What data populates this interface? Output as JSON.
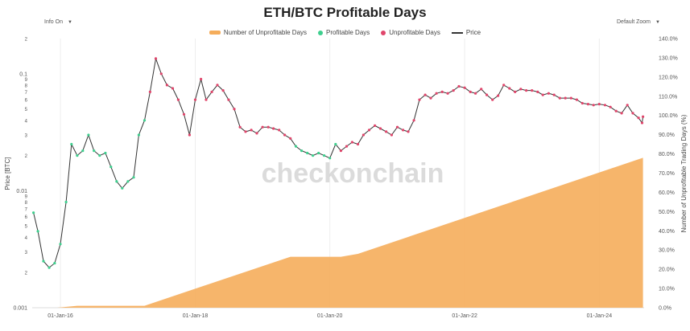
{
  "title": "ETH/BTC Profitable Days",
  "controls": {
    "info_label": "Info On",
    "zoom_label": "Default Zoom",
    "arrow": "▼"
  },
  "legend": [
    {
      "label": "Number of Unprofitable Days",
      "marker": "bar",
      "color": "#f5ad5b"
    },
    {
      "label": "Profitable Days",
      "marker": "dot",
      "color": "#3ecf8e"
    },
    {
      "label": "Unprofitable Days",
      "marker": "dot",
      "color": "#e0456b"
    },
    {
      "label": "Price",
      "marker": "line",
      "color": "#333333"
    }
  ],
  "watermark": "checkonchain",
  "chart_data": {
    "type": "line",
    "ylabel": "Price [BTC]",
    "y2label": "Number of Unprofitable Trading Days (%)",
    "y_scale": "log",
    "ylim": [
      0.001,
      0.2
    ],
    "y2lim": [
      0,
      140
    ],
    "xlim": [
      "2015-08-01",
      "2024-08-31"
    ],
    "x_ticks": [
      "01-Jan-16",
      "01-Jan-18",
      "01-Jan-20",
      "01-Jan-22",
      "01-Jan-24"
    ],
    "x_tick_dates": [
      "2016-01-01",
      "2018-01-01",
      "2020-01-01",
      "2022-01-01",
      "2024-01-01"
    ],
    "y_ticks": [
      {
        "v": 0.001,
        "l": "0.001"
      },
      {
        "v": 0.002,
        "l": "2"
      },
      {
        "v": 0.003,
        "l": "3"
      },
      {
        "v": 0.004,
        "l": "4"
      },
      {
        "v": 0.005,
        "l": "5"
      },
      {
        "v": 0.006,
        "l": "6"
      },
      {
        "v": 0.007,
        "l": "7"
      },
      {
        "v": 0.008,
        "l": "8"
      },
      {
        "v": 0.009,
        "l": "9"
      },
      {
        "v": 0.01,
        "l": "0.01"
      },
      {
        "v": 0.02,
        "l": "2"
      },
      {
        "v": 0.03,
        "l": "3"
      },
      {
        "v": 0.04,
        "l": "4"
      },
      {
        "v": 0.05,
        "l": "5"
      },
      {
        "v": 0.06,
        "l": "6"
      },
      {
        "v": 0.07,
        "l": "7"
      },
      {
        "v": 0.08,
        "l": "8"
      },
      {
        "v": 0.09,
        "l": "9"
      },
      {
        "v": 0.1,
        "l": "0.1"
      },
      {
        "v": 0.2,
        "l": "2"
      }
    ],
    "y2_ticks": [
      "0.0%",
      "10.0%",
      "20.0%",
      "30.0%",
      "40.0%",
      "50.0%",
      "60.0%",
      "70.0%",
      "80.0%",
      "90.0%",
      "100.0%",
      "110.0%",
      "120.0%",
      "130.0%",
      "140.0%"
    ],
    "series": [
      {
        "name": "Price",
        "color": "#333333",
        "points": [
          [
            "2015-08-08",
            0.0065
          ],
          [
            "2015-09-01",
            0.0045
          ],
          [
            "2015-10-01",
            0.0025
          ],
          [
            "2015-11-01",
            0.0022
          ],
          [
            "2015-12-01",
            0.0024
          ],
          [
            "2016-01-01",
            0.0035
          ],
          [
            "2016-02-01",
            0.008
          ],
          [
            "2016-03-01",
            0.025
          ],
          [
            "2016-04-01",
            0.02
          ],
          [
            "2016-05-01",
            0.022
          ],
          [
            "2016-06-01",
            0.03
          ],
          [
            "2016-07-01",
            0.022
          ],
          [
            "2016-08-01",
            0.02
          ],
          [
            "2016-09-01",
            0.021
          ],
          [
            "2016-10-01",
            0.016
          ],
          [
            "2016-11-01",
            0.012
          ],
          [
            "2016-12-01",
            0.0105
          ],
          [
            "2017-01-01",
            0.012
          ],
          [
            "2017-02-01",
            0.013
          ],
          [
            "2017-03-01",
            0.03
          ],
          [
            "2017-04-01",
            0.04
          ],
          [
            "2017-05-01",
            0.07
          ],
          [
            "2017-06-01",
            0.135
          ],
          [
            "2017-07-01",
            0.1
          ],
          [
            "2017-08-01",
            0.08
          ],
          [
            "2017-09-01",
            0.075
          ],
          [
            "2017-10-01",
            0.06
          ],
          [
            "2017-11-01",
            0.045
          ],
          [
            "2017-12-01",
            0.03
          ],
          [
            "2018-01-01",
            0.06
          ],
          [
            "2018-02-01",
            0.09
          ],
          [
            "2018-03-01",
            0.06
          ],
          [
            "2018-04-01",
            0.07
          ],
          [
            "2018-05-01",
            0.08
          ],
          [
            "2018-06-01",
            0.072
          ],
          [
            "2018-07-01",
            0.06
          ],
          [
            "2018-08-01",
            0.05
          ],
          [
            "2018-09-01",
            0.035
          ],
          [
            "2018-10-01",
            0.032
          ],
          [
            "2018-11-01",
            0.033
          ],
          [
            "2018-12-01",
            0.031
          ],
          [
            "2019-01-01",
            0.035
          ],
          [
            "2019-02-01",
            0.035
          ],
          [
            "2019-03-01",
            0.034
          ],
          [
            "2019-04-01",
            0.033
          ],
          [
            "2019-05-01",
            0.03
          ],
          [
            "2019-06-01",
            0.028
          ],
          [
            "2019-07-01",
            0.024
          ],
          [
            "2019-08-01",
            0.022
          ],
          [
            "2019-09-01",
            0.021
          ],
          [
            "2019-10-01",
            0.02
          ],
          [
            "2019-11-01",
            0.021
          ],
          [
            "2019-12-01",
            0.02
          ],
          [
            "2020-01-01",
            0.019
          ],
          [
            "2020-02-01",
            0.025
          ],
          [
            "2020-03-01",
            0.022
          ],
          [
            "2020-04-01",
            0.024
          ],
          [
            "2020-05-01",
            0.026
          ],
          [
            "2020-06-01",
            0.025
          ],
          [
            "2020-07-01",
            0.03
          ],
          [
            "2020-08-01",
            0.033
          ],
          [
            "2020-09-01",
            0.036
          ],
          [
            "2020-10-01",
            0.034
          ],
          [
            "2020-11-01",
            0.032
          ],
          [
            "2020-12-01",
            0.03
          ],
          [
            "2021-01-01",
            0.035
          ],
          [
            "2021-02-01",
            0.033
          ],
          [
            "2021-03-01",
            0.032
          ],
          [
            "2021-04-01",
            0.04
          ],
          [
            "2021-05-01",
            0.06
          ],
          [
            "2021-06-01",
            0.066
          ],
          [
            "2021-07-01",
            0.062
          ],
          [
            "2021-08-01",
            0.068
          ],
          [
            "2021-09-01",
            0.07
          ],
          [
            "2021-10-01",
            0.068
          ],
          [
            "2021-11-01",
            0.072
          ],
          [
            "2021-12-01",
            0.078
          ],
          [
            "2022-01-01",
            0.076
          ],
          [
            "2022-02-01",
            0.07
          ],
          [
            "2022-03-01",
            0.068
          ],
          [
            "2022-04-01",
            0.074
          ],
          [
            "2022-05-01",
            0.066
          ],
          [
            "2022-06-01",
            0.06
          ],
          [
            "2022-07-01",
            0.065
          ],
          [
            "2022-08-01",
            0.08
          ],
          [
            "2022-09-01",
            0.075
          ],
          [
            "2022-10-01",
            0.07
          ],
          [
            "2022-11-01",
            0.074
          ],
          [
            "2022-12-01",
            0.072
          ],
          [
            "2023-01-01",
            0.072
          ],
          [
            "2023-02-01",
            0.07
          ],
          [
            "2023-03-01",
            0.066
          ],
          [
            "2023-04-01",
            0.068
          ],
          [
            "2023-05-01",
            0.066
          ],
          [
            "2023-06-01",
            0.062
          ],
          [
            "2023-07-01",
            0.062
          ],
          [
            "2023-08-01",
            0.062
          ],
          [
            "2023-09-01",
            0.06
          ],
          [
            "2023-10-01",
            0.056
          ],
          [
            "2023-11-01",
            0.055
          ],
          [
            "2023-12-01",
            0.054
          ],
          [
            "2024-01-01",
            0.055
          ],
          [
            "2024-02-01",
            0.054
          ],
          [
            "2024-03-01",
            0.052
          ],
          [
            "2024-04-01",
            0.048
          ],
          [
            "2024-05-01",
            0.046
          ],
          [
            "2024-06-01",
            0.054
          ],
          [
            "2024-07-01",
            0.046
          ],
          [
            "2024-08-01",
            0.042
          ],
          [
            "2024-08-20",
            0.038
          ],
          [
            "2024-08-25",
            0.043
          ]
        ]
      },
      {
        "name": "Number of Unprofitable Days",
        "type": "area",
        "axis": "y2",
        "color": "#f5ad5b",
        "points": [
          [
            "2015-08-08",
            0
          ],
          [
            "2015-12-15",
            0
          ],
          [
            "2016-04-01",
            1
          ],
          [
            "2017-04-01",
            1
          ],
          [
            "2019-06-01",
            26.5
          ],
          [
            "2020-03-01",
            26.5
          ],
          [
            "2020-06-01",
            28
          ],
          [
            "2024-08-25",
            78
          ]
        ]
      }
    ],
    "profitable_periods": [
      [
        "2015-08-08",
        "2017-04-15"
      ],
      [
        "2019-06-10",
        "2020-02-01"
      ]
    ]
  }
}
